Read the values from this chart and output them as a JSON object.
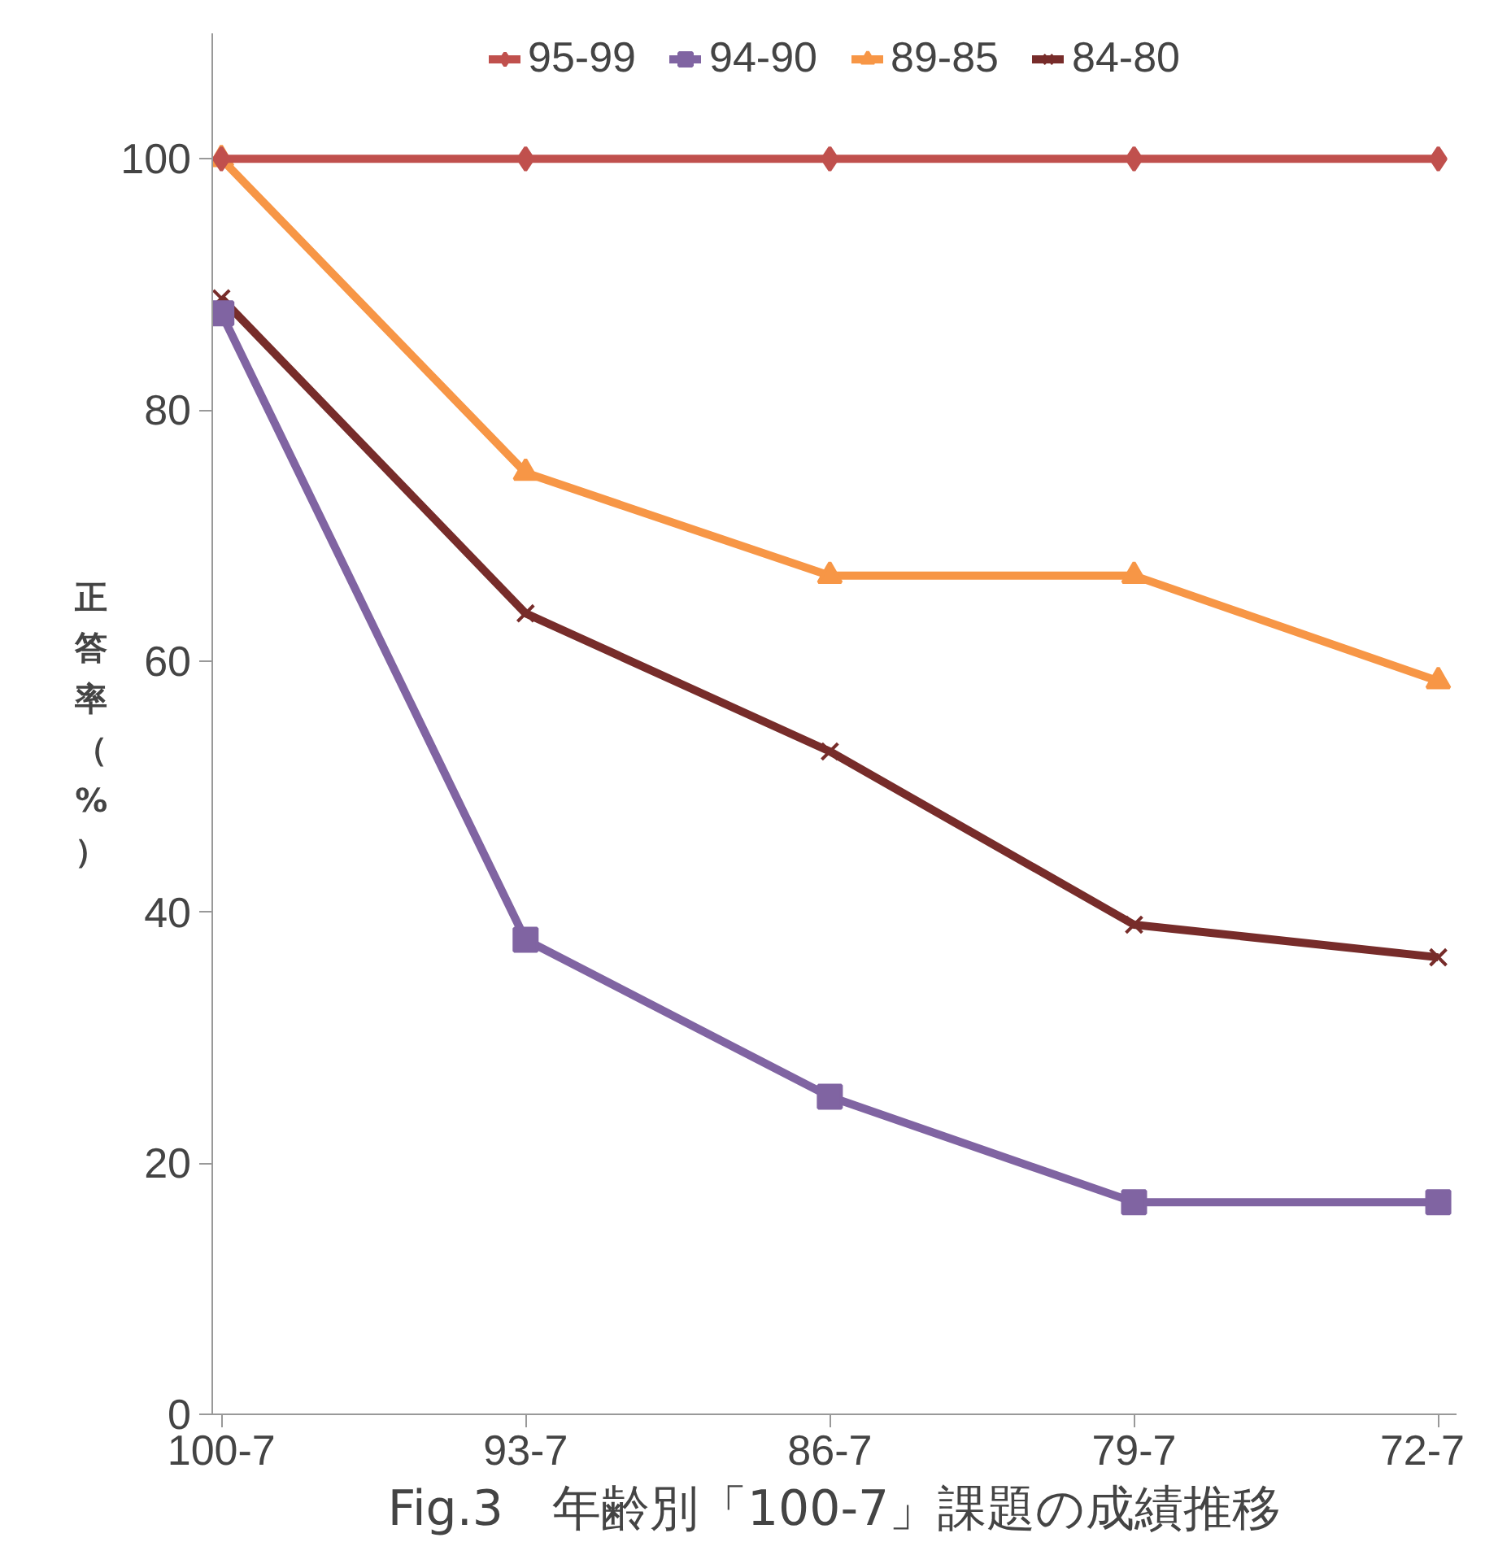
{
  "chart_data": {
    "type": "line",
    "title": "Fig.3　年齢別「100-7」課題の成績推移",
    "ylabel": "正答率（%）",
    "categories": [
      "100-7",
      "93-7",
      "86-7",
      "79-7",
      "72-7"
    ],
    "series": [
      {
        "name": "95-99",
        "color": "#c0504d",
        "marker": "diamond",
        "values": [
          100,
          100,
          100,
          100,
          100
        ]
      },
      {
        "name": "94-90",
        "color": "#8064a2",
        "marker": "square",
        "values": [
          87.7,
          37.8,
          25.3,
          16.9,
          16.9
        ]
      },
      {
        "name": "89-85",
        "color": "#f79646",
        "marker": "triangle",
        "values": [
          100,
          75,
          66.8,
          66.8,
          58.4
        ]
      },
      {
        "name": "84-80",
        "color": "#772c2a",
        "marker": "cross",
        "values": [
          88.9,
          63.8,
          52.8,
          39,
          36.4
        ]
      }
    ],
    "ylim": [
      0,
      110
    ],
    "yticks": [
      0,
      20,
      40,
      60,
      80,
      100
    ],
    "grid": false,
    "legend": "top",
    "line_style": "solid"
  }
}
